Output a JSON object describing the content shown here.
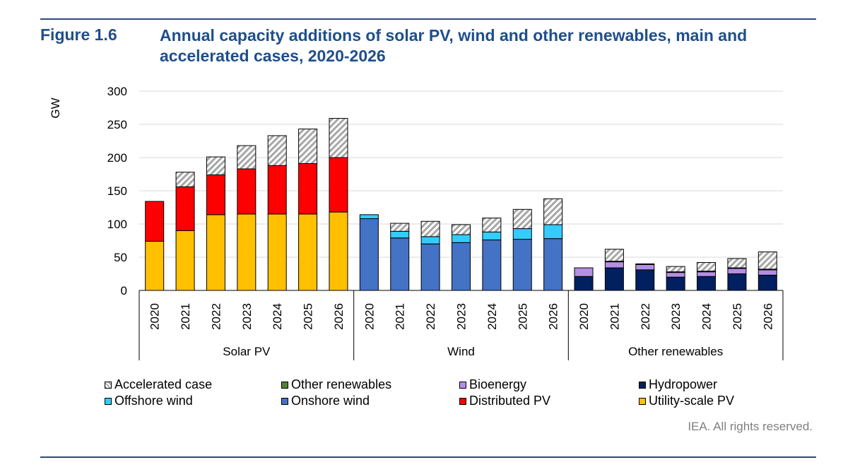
{
  "figure": {
    "number": "Figure 1.6",
    "title": "Annual capacity additions of solar PV, wind and other renewables, main and accelerated cases, 2020-2026"
  },
  "credit": "IEA. All rights reserved.",
  "chart_data": {
    "type": "bar",
    "stacked": true,
    "ylabel": "GW",
    "ylim": [
      0,
      300
    ],
    "yticks": [
      0,
      50,
      100,
      150,
      200,
      250,
      300
    ],
    "grid": true,
    "legend_position": "bottom",
    "groups": [
      {
        "name": "Solar PV",
        "categories": [
          "2020",
          "2021",
          "2022",
          "2023",
          "2024",
          "2025",
          "2026"
        ]
      },
      {
        "name": "Wind",
        "categories": [
          "2020",
          "2021",
          "2022",
          "2023",
          "2024",
          "2025",
          "2026"
        ]
      },
      {
        "name": "Other renewables",
        "categories": [
          "2020",
          "2021",
          "2022",
          "2023",
          "2024",
          "2025",
          "2026"
        ]
      }
    ],
    "series": [
      {
        "name": "Utility-scale PV",
        "color": "#ffc000",
        "values": [
          74,
          90,
          114,
          115,
          115,
          115,
          118,
          0,
          0,
          0,
          0,
          0,
          0,
          0,
          0,
          0,
          0,
          0,
          0,
          0,
          0
        ]
      },
      {
        "name": "Distributed PV",
        "color": "#ff0000",
        "values": [
          60,
          66,
          60,
          68,
          73,
          76,
          82,
          0,
          0,
          0,
          0,
          0,
          0,
          0,
          0,
          0,
          0,
          0,
          0,
          0,
          0
        ]
      },
      {
        "name": "Onshore wind",
        "color": "#4472c4",
        "values": [
          0,
          0,
          0,
          0,
          0,
          0,
          0,
          108,
          79,
          70,
          72,
          76,
          77,
          78,
          0,
          0,
          0,
          0,
          0,
          0,
          0
        ]
      },
      {
        "name": "Offshore wind",
        "color": "#33ccff",
        "values": [
          0,
          0,
          0,
          0,
          0,
          0,
          0,
          6,
          10,
          11,
          12,
          12,
          16,
          21,
          0,
          0,
          0,
          0,
          0,
          0,
          0
        ]
      },
      {
        "name": "Hydropower",
        "color": "#002060",
        "values": [
          0,
          0,
          0,
          0,
          0,
          0,
          0,
          0,
          0,
          0,
          0,
          0,
          0,
          0,
          21,
          34,
          31,
          20,
          21,
          25,
          23
        ]
      },
      {
        "name": "Bioenergy",
        "color": "#b48ee6",
        "values": [
          0,
          0,
          0,
          0,
          0,
          0,
          0,
          0,
          0,
          0,
          0,
          0,
          0,
          0,
          13,
          9,
          8,
          7,
          7,
          8,
          8
        ]
      },
      {
        "name": "Other renewables",
        "color": "#548235",
        "values": [
          0,
          0,
          0,
          0,
          0,
          0,
          0,
          0,
          0,
          0,
          0,
          0,
          0,
          0,
          0,
          1,
          1,
          1,
          1,
          1,
          1
        ]
      },
      {
        "name": "Accelerated case",
        "color": "#d9d9d9",
        "pattern": "hatch",
        "values": [
          0,
          22,
          27,
          35,
          45,
          52,
          59,
          0,
          12,
          23,
          15,
          21,
          29,
          39,
          0,
          18,
          0,
          8,
          13,
          14,
          26
        ]
      }
    ],
    "legend_order": [
      "Accelerated case",
      "Other renewables",
      "Bioenergy",
      "Hydropower",
      "Offshore wind",
      "Onshore wind",
      "Distributed PV",
      "Utility-scale PV"
    ]
  }
}
